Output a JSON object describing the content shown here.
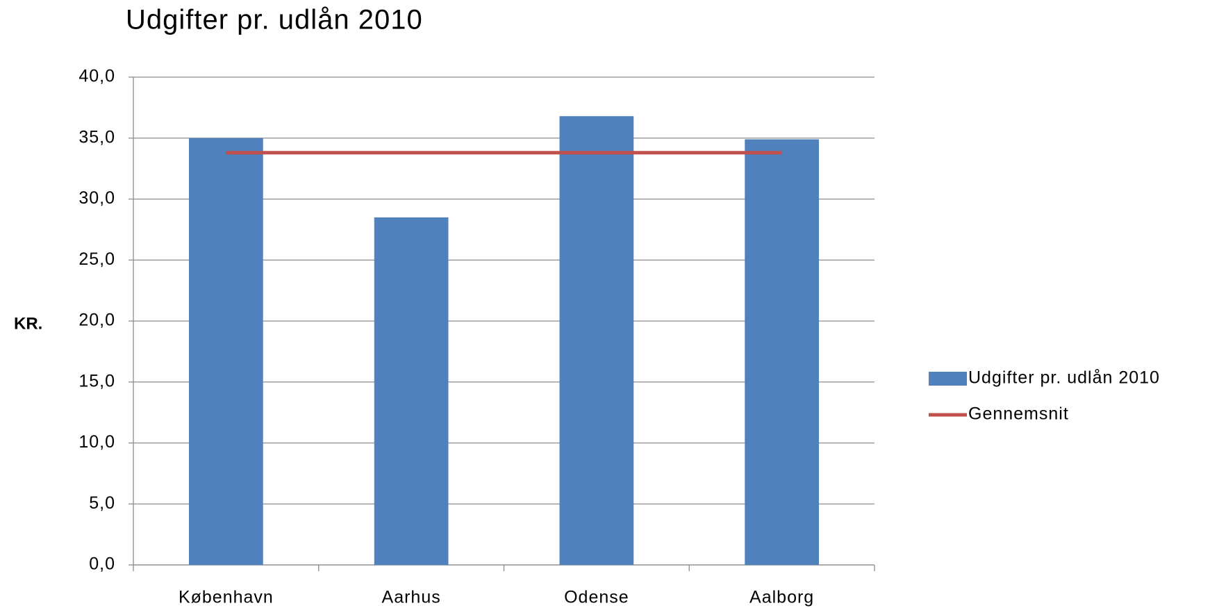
{
  "chart_data": {
    "type": "bar",
    "title": "Udgifter pr. udlån 2010",
    "y_label": "KR.",
    "categories": [
      "København",
      "Aarhus",
      "Odense",
      "Aalborg"
    ],
    "series": [
      {
        "name": "Udgifter pr. udlån 2010",
        "type": "bar",
        "color": "#4f81bd",
        "values": [
          35.0,
          28.5,
          36.8,
          34.9
        ]
      },
      {
        "name": "Gennemsnit",
        "type": "line",
        "color": "#c0504d",
        "values": [
          33.8,
          33.8,
          33.8,
          33.8
        ]
      }
    ],
    "ylim": [
      0,
      40
    ],
    "yticks": [
      {
        "value": 0,
        "label": "0,0"
      },
      {
        "value": 5,
        "label": "5,0"
      },
      {
        "value": 10,
        "label": "10,0"
      },
      {
        "value": 15,
        "label": "15,0"
      },
      {
        "value": 20,
        "label": "20,0"
      },
      {
        "value": 25,
        "label": "25,0"
      },
      {
        "value": 30,
        "label": "30,0"
      },
      {
        "value": 35,
        "label": "35,0"
      },
      {
        "value": 40,
        "label": "40,0"
      }
    ],
    "grid": true,
    "legend": "right"
  }
}
